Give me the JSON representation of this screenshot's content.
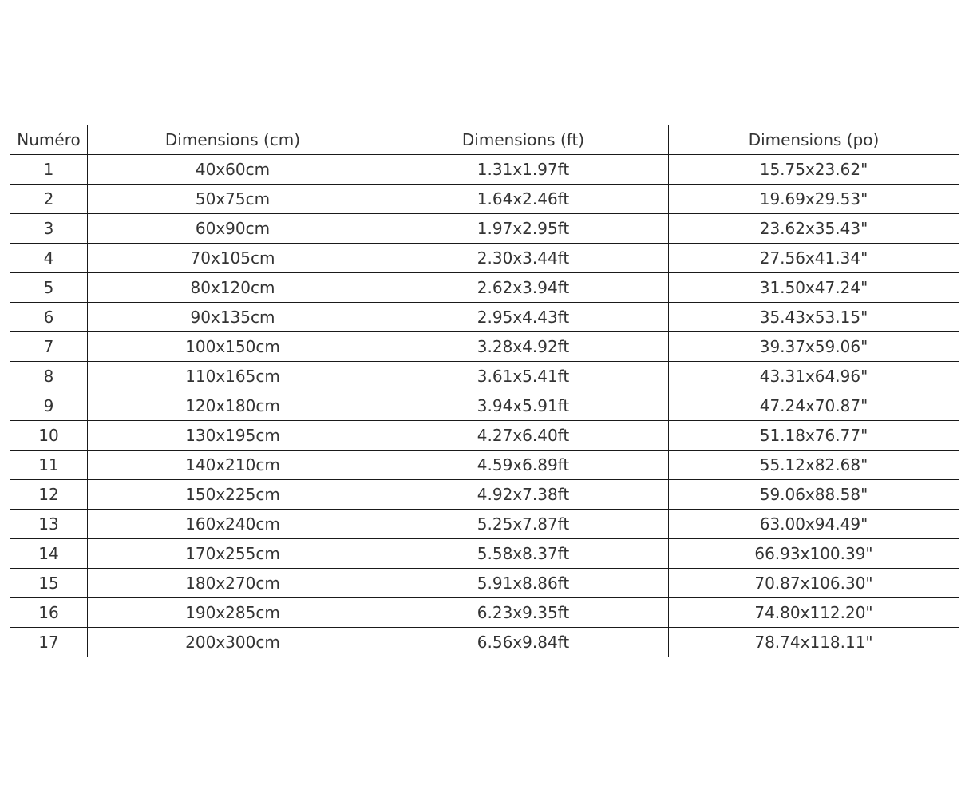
{
  "table": {
    "headers": [
      "Numéro",
      "Dimensions (cm)",
      "Dimensions (ft)",
      "Dimensions (po)"
    ],
    "rows": [
      [
        "1",
        "40x60cm",
        "1.31x1.97ft",
        "15.75x23.62\""
      ],
      [
        "2",
        "50x75cm",
        "1.64x2.46ft",
        "19.69x29.53\""
      ],
      [
        "3",
        "60x90cm",
        "1.97x2.95ft",
        "23.62x35.43\""
      ],
      [
        "4",
        "70x105cm",
        "2.30x3.44ft",
        "27.56x41.34\""
      ],
      [
        "5",
        "80x120cm",
        "2.62x3.94ft",
        "31.50x47.24\""
      ],
      [
        "6",
        "90x135cm",
        "2.95x4.43ft",
        "35.43x53.15\""
      ],
      [
        "7",
        "100x150cm",
        "3.28x4.92ft",
        "39.37x59.06\""
      ],
      [
        "8",
        "110x165cm",
        "3.61x5.41ft",
        "43.31x64.96\""
      ],
      [
        "9",
        "120x180cm",
        "3.94x5.91ft",
        "47.24x70.87\""
      ],
      [
        "10",
        "130x195cm",
        "4.27x6.40ft",
        "51.18x76.77\""
      ],
      [
        "11",
        "140x210cm",
        "4.59x6.89ft",
        "55.12x82.68\""
      ],
      [
        "12",
        "150x225cm",
        "4.92x7.38ft",
        "59.06x88.58\""
      ],
      [
        "13",
        "160x240cm",
        "5.25x7.87ft",
        "63.00x94.49\""
      ],
      [
        "14",
        "170x255cm",
        "5.58x8.37ft",
        "66.93x100.39\""
      ],
      [
        "15",
        "180x270cm",
        "5.91x8.86ft",
        "70.87x106.30\""
      ],
      [
        "16",
        "190x285cm",
        "6.23x9.35ft",
        "74.80x112.20\""
      ],
      [
        "17",
        "200x300cm",
        "6.56x9.84ft",
        "78.74x118.11\""
      ]
    ]
  }
}
